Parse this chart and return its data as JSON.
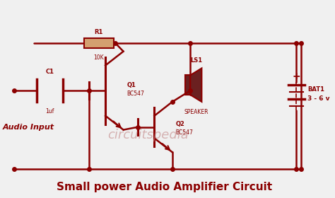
{
  "bg_color": "#f0f0f0",
  "wire_color": "#8B0000",
  "wire_lw": 1.8,
  "title": "Small power Audio Amplifier Circuit",
  "title_color": "#8B0000",
  "title_fontsize": 11,
  "watermark": "circuitspedia",
  "watermark_color": "#c08080",
  "watermark_fontsize": 13,
  "audio_input_label": "Audio Input",
  "audio_input_color": "#8B0000",
  "component_color": "#8B0000",
  "component_fill": "#d4a070",
  "speaker_fill": "#6B2020",
  "battery_label": "BAT1",
  "battery_voltage": "3 - 6 v",
  "R1_label": "R1",
  "R1_value": "10K",
  "C1_label": "C1",
  "C1_value": "1uf",
  "Q1_label": "Q1",
  "Q1_value": "BC547",
  "Q2_label": "Q2",
  "Q2_value": "BC547",
  "LS1_label": "LS1",
  "LS1_value": "SPEAKER"
}
